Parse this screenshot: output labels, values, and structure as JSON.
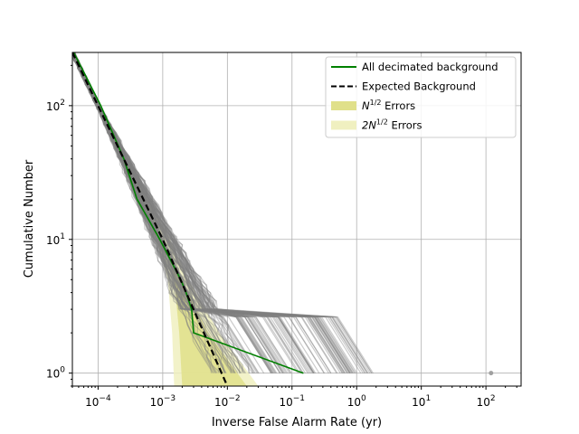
{
  "chart_data": {
    "type": "line",
    "title": "",
    "xlabel": "Inverse False Alarm Rate (yr)",
    "ylabel": "Cumulative Number",
    "xscale": "log",
    "yscale": "log",
    "xlim": [
      4e-05,
      350
    ],
    "ylim": [
      0.8,
      250
    ],
    "grid": true,
    "legend_position": "top-right",
    "x_tick_labels": [
      {
        "value": 0.0001,
        "base": "10",
        "exp": "−4"
      },
      {
        "value": 0.001,
        "base": "10",
        "exp": "−3"
      },
      {
        "value": 0.01,
        "base": "10",
        "exp": "−2"
      },
      {
        "value": 0.1,
        "base": "10",
        "exp": "−1"
      },
      {
        "value": 1,
        "base": "10",
        "exp": "0"
      },
      {
        "value": 10,
        "base": "10",
        "exp": "1"
      },
      {
        "value": 100,
        "base": "10",
        "exp": "2"
      }
    ],
    "y_tick_labels": [
      {
        "value": 1,
        "base": "10",
        "exp": "0"
      },
      {
        "value": 10,
        "base": "10",
        "exp": "1"
      },
      {
        "value": 100,
        "base": "10",
        "exp": "2"
      }
    ],
    "legend": [
      {
        "kind": "line",
        "color": "#008000",
        "dash": "",
        "text": "All decimated background"
      },
      {
        "kind": "line",
        "color": "#000000",
        "dash": "6,3",
        "text": "Expected Background"
      },
      {
        "kind": "patch",
        "color": "#e0e08a",
        "base": "N",
        "sup": "1/2",
        "text": " Errors"
      },
      {
        "kind": "patch",
        "color": "#f0f0c0",
        "base": "2N",
        "sup": "1/2",
        "text": " Errors"
      }
    ],
    "series": [
      {
        "name": "All decimated background",
        "color": "#008000",
        "style": "solid",
        "x": [
          4.2e-05,
          0.00011,
          0.00025,
          0.0004,
          0.0009,
          0.0019,
          0.0023,
          0.0028,
          0.003,
          0.15
        ],
        "y": [
          250,
          100,
          40,
          20,
          10,
          5,
          4,
          3,
          2,
          1
        ]
      },
      {
        "name": "Expected Background",
        "color": "#000000",
        "style": "dashed",
        "x": [
          4e-05,
          0.0001,
          0.001,
          0.01
        ],
        "y": [
          250,
          100,
          10,
          0.8
        ]
      }
    ],
    "band_inner": {
      "color": "#e0e08a",
      "x_low": [
        4e-05,
        0.0001,
        0.00045,
        0.001,
        0.0015,
        0.0018,
        0.002
      ],
      "x_high": [
        4e-05,
        0.0001,
        0.0005,
        0.001,
        0.002,
        0.005,
        0.02
      ],
      "y": [
        250,
        100,
        20,
        10,
        5,
        2,
        0.8
      ]
    },
    "band_outer": {
      "color": "#f0f0c0",
      "x_low": [
        4e-05,
        0.0001,
        0.0004,
        0.0008,
        0.0012,
        0.0014,
        0.0015
      ],
      "x_high": [
        4e-05,
        0.0001,
        0.0006,
        0.0013,
        0.0025,
        0.0075,
        0.03
      ],
      "y": [
        250,
        100,
        20,
        10,
        5,
        2,
        0.8
      ]
    },
    "bundle": {
      "name": "decimated background realizations",
      "color": "#808080",
      "count": 120,
      "outlier": {
        "x": 120,
        "y": 1
      }
    }
  }
}
